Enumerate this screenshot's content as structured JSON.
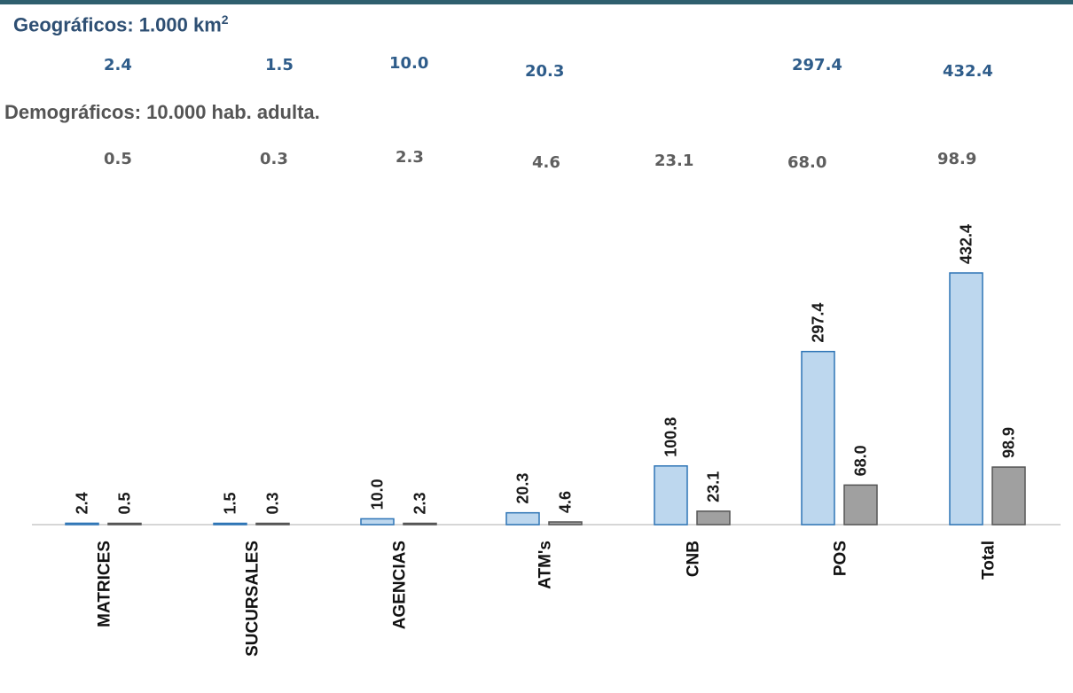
{
  "geo_heading": {
    "text": "Geográficos: 1.000 km",
    "sup": "2"
  },
  "demo_heading": "Demográficos: 10.000 hab. adulta.",
  "geo_row": [
    "2.4",
    "1.5",
    "10.0",
    "20.3",
    "",
    "297.4",
    "432.4"
  ],
  "demo_row": [
    "0.5",
    "0.3",
    "2.3",
    "4.6",
    "23.1",
    "68.0",
    "98.9"
  ],
  "colors": {
    "geo_fill": "#bdd7ee",
    "geo_stroke": "#2e75b6",
    "demo_fill": "#a0a0a0",
    "demo_stroke": "#555555",
    "geo_text": "#2e5c8a",
    "demo_text": "#5e5e5e",
    "top_rule": "#2f5f6e"
  },
  "chart_data": {
    "type": "bar",
    "categories": [
      "MATRICES",
      "SUCURSALES",
      "AGENCIAS",
      "ATM's",
      "CNB",
      "POS",
      "Total"
    ],
    "series": [
      {
        "values": [
          2.4,
          1.5,
          10.0,
          20.3,
          100.8,
          297.4,
          432.4
        ]
      },
      {
        "values": [
          0.5,
          0.3,
          2.3,
          4.6,
          23.1,
          68.0,
          98.9
        ]
      }
    ],
    "data_labels": [
      [
        "2.4",
        "1.5",
        "10.0",
        "20.3",
        "100.8",
        "297.4",
        "432.4"
      ],
      [
        "0.5",
        "0.3",
        "2.3",
        "4.6",
        "23.1",
        "68.0",
        "98.9"
      ]
    ],
    "category_label_orientation": "vertical",
    "data_label_orientation": "vertical",
    "grid": false,
    "legend": "none"
  }
}
